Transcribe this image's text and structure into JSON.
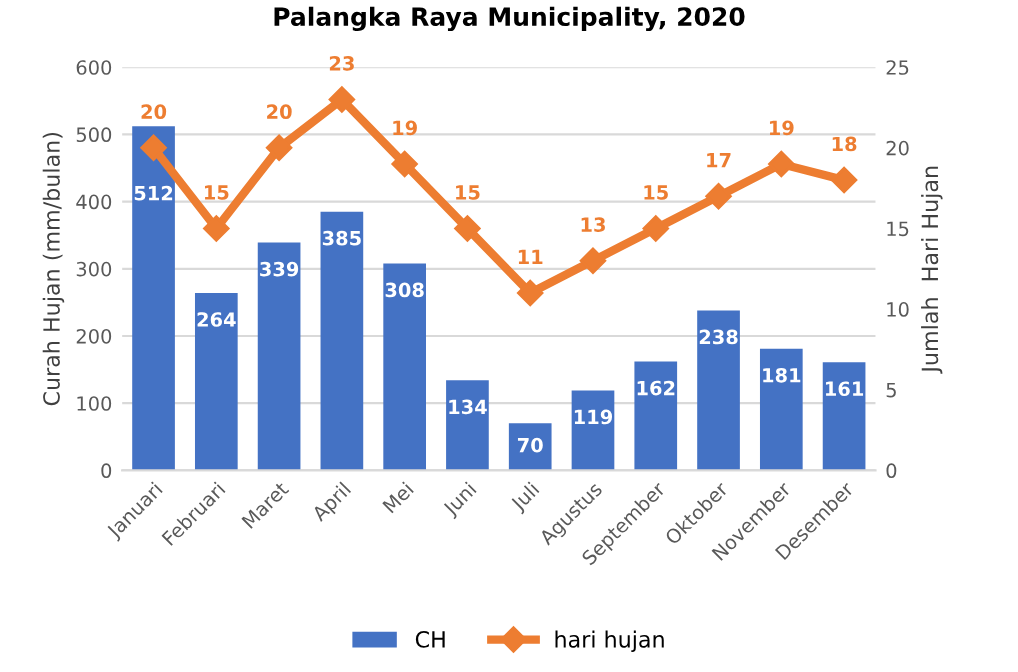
{
  "chart_data": {
    "type": "bar",
    "title": "Palangka Raya Municipality, 2020",
    "ylabel": "Curah Hujan (mm/bulan)",
    "y2label": "Jumlah  Hari Hujan",
    "categories": [
      "Januari",
      "Februari",
      "Maret",
      "April",
      "Mei",
      "Juni",
      "Juli",
      "Agustus",
      "September",
      "Oktober",
      "November",
      "Desember"
    ],
    "series": [
      {
        "name": "CH",
        "color": "#4472c4",
        "values": [
          512,
          264,
          339,
          385,
          308,
          134,
          70,
          119,
          162,
          238,
          181,
          161
        ]
      },
      {
        "name": "hari hujan",
        "type": "line",
        "axis": "y2",
        "color": "#ed7d31",
        "marker": "diamond",
        "values": [
          20,
          15,
          20,
          23,
          19,
          15,
          11,
          13,
          15,
          17,
          19,
          18
        ]
      }
    ],
    "ylim": [
      0,
      600
    ],
    "yticks": [
      0,
      100,
      200,
      300,
      400,
      500,
      600
    ],
    "y2lim": [
      0,
      25
    ],
    "y2ticks": [
      0,
      5,
      10,
      15,
      20,
      25
    ],
    "data_labels": true,
    "grid": "y",
    "legend": "bottom"
  }
}
